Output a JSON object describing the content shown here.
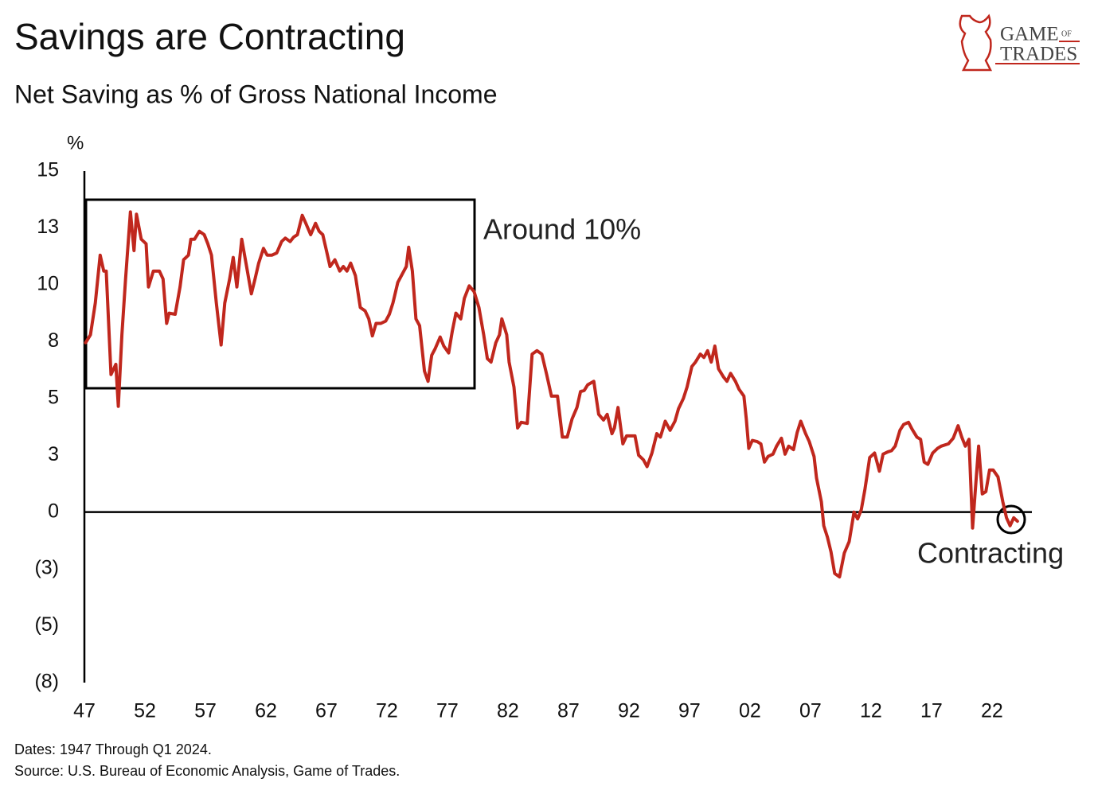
{
  "chart_data": {
    "type": "line",
    "title": "Savings are Contracting",
    "subtitle": "Net Saving as % of Gross National Income",
    "y_label": "%",
    "annotations": [
      "Around 10%",
      "Contracting"
    ],
    "footnotes": [
      "Dates: 1947 Through Q1 2024.",
      "Source: U.S. Bureau of Economic Analysis, Game of Trades."
    ],
    "logo": {
      "game": "GAME",
      "of": "OF",
      "trades": "TRADES"
    },
    "color": "#c0271d",
    "grid": false,
    "xlim": [
      1947,
      2025.3
    ],
    "ylim": [
      -7.5,
      15
    ],
    "yticks": [
      15,
      {
        "value": 12.5,
        "label": "13"
      },
      10,
      {
        "value": 7.5,
        "label": "8"
      },
      5,
      {
        "value": 2.5,
        "label": "3"
      },
      0,
      {
        "value": -2.5,
        "label": "(3)"
      },
      {
        "value": -5,
        "label": "(5)"
      },
      {
        "value": -7.5,
        "label": "(8)"
      }
    ],
    "xticks": [
      {
        "value": 1947,
        "label": "47"
      },
      {
        "value": 1952,
        "label": "52"
      },
      {
        "value": 1957,
        "label": "57"
      },
      {
        "value": 1962,
        "label": "62"
      },
      {
        "value": 1967,
        "label": "67"
      },
      {
        "value": 1972,
        "label": "72"
      },
      {
        "value": 1977,
        "label": "77"
      },
      {
        "value": 1982,
        "label": "82"
      },
      {
        "value": 1987,
        "label": "87"
      },
      {
        "value": 1992,
        "label": "92"
      },
      {
        "value": 1997,
        "label": "97"
      },
      {
        "value": 2002,
        "label": "02"
      },
      {
        "value": 2007,
        "label": "07"
      },
      {
        "value": 2012,
        "label": "12"
      },
      {
        "value": 2017,
        "label": "17"
      },
      {
        "value": 2022,
        "label": "22"
      }
    ],
    "x": [
      1947.1,
      1947.5,
      1947.9,
      1948.3,
      1948.6,
      1948.8,
      1949.2,
      1949.6,
      1949.8,
      1950.1,
      1950.4,
      1950.8,
      1951.1,
      1951.3,
      1951.7,
      1952.1,
      1952.3,
      1952.7,
      1953.2,
      1953.5,
      1953.8,
      1954.0,
      1954.5,
      1954.9,
      1955.2,
      1955.6,
      1955.8,
      1956.1,
      1956.5,
      1956.9,
      1957.2,
      1957.5,
      1957.9,
      1958.3,
      1958.6,
      1959.0,
      1959.3,
      1959.6,
      1960.0,
      1960.4,
      1960.8,
      1961.1,
      1961.4,
      1961.8,
      1962.1,
      1962.5,
      1962.9,
      1963.3,
      1963.6,
      1964.0,
      1964.3,
      1964.6,
      1965.0,
      1965.3,
      1965.7,
      1966.1,
      1966.4,
      1966.7,
      1967.0,
      1967.3,
      1967.7,
      1968.1,
      1968.4,
      1968.7,
      1969.0,
      1969.4,
      1969.8,
      1970.2,
      1970.5,
      1970.8,
      1971.1,
      1971.5,
      1971.9,
      1972.2,
      1972.5,
      1972.9,
      1973.3,
      1973.6,
      1973.8,
      1974.1,
      1974.4,
      1974.7,
      1975.1,
      1975.4,
      1975.7,
      1976.0,
      1976.4,
      1976.7,
      1977.1,
      1977.4,
      1977.7,
      1978.1,
      1978.4,
      1978.8,
      1979.2,
      1979.6,
      1980.0,
      1980.3,
      1980.6,
      1981.0,
      1981.3,
      1981.5,
      1981.9,
      1982.1,
      1982.5,
      1982.8,
      1983.1,
      1983.6,
      1984.0,
      1984.4,
      1984.8,
      1985.2,
      1985.6,
      1986.1,
      1986.5,
      1986.9,
      1987.3,
      1987.7,
      1988.0,
      1988.3,
      1988.6,
      1989.1,
      1989.5,
      1989.9,
      1990.2,
      1990.6,
      1990.8,
      1991.1,
      1991.5,
      1991.8,
      1992.5,
      1992.8,
      1993.2,
      1993.5,
      1993.9,
      1994.3,
      1994.6,
      1995.0,
      1995.4,
      1995.8,
      1996.1,
      1996.5,
      1996.8,
      1997.2,
      1997.5,
      1997.9,
      1998.2,
      1998.5,
      1998.8,
      1999.1,
      1999.4,
      1999.8,
      2000.1,
      2000.4,
      2000.8,
      2001.1,
      2001.5,
      2001.7,
      2001.9,
      2002.2,
      2002.6,
      2002.9,
      2003.2,
      2003.5,
      2003.9,
      2004.2,
      2004.6,
      2004.9,
      2005.2,
      2005.6,
      2005.9,
      2006.2,
      2006.6,
      2006.9,
      2007.3,
      2007.5,
      2007.9,
      2008.1,
      2008.4,
      2008.7,
      2009.0,
      2009.4,
      2009.8,
      2010.2,
      2010.6,
      2010.9,
      2011.2,
      2011.5,
      2011.9,
      2012.3,
      2012.7,
      2013.0,
      2013.4,
      2013.7,
      2014.0,
      2014.4,
      2014.7,
      2015.1,
      2015.4,
      2015.8,
      2016.1,
      2016.4,
      2016.7,
      2017.1,
      2017.5,
      2017.8,
      2018.4,
      2018.8,
      2019.2,
      2019.5,
      2019.8,
      2020.1,
      2020.4,
      2020.6,
      2020.9,
      2021.2,
      2021.5,
      2021.8,
      2022.1,
      2022.5,
      2022.9,
      2023.2,
      2023.5,
      2023.8,
      2024.1
    ],
    "values": [
      7.45,
      7.8,
      9.2,
      11.3,
      10.6,
      10.6,
      6.05,
      6.5,
      4.65,
      7.8,
      10.25,
      13.2,
      11.5,
      13.1,
      12.0,
      11.8,
      9.9,
      10.6,
      10.6,
      10.25,
      8.3,
      8.75,
      8.7,
      9.9,
      11.1,
      11.3,
      12.0,
      12.0,
      12.35,
      12.2,
      11.8,
      11.3,
      9.2,
      7.35,
      9.2,
      10.25,
      11.2,
      9.9,
      12.0,
      10.8,
      9.6,
      10.25,
      10.95,
      11.6,
      11.3,
      11.3,
      11.4,
      11.9,
      12.05,
      11.9,
      12.1,
      12.2,
      13.05,
      12.7,
      12.2,
      12.7,
      12.35,
      12.2,
      11.5,
      10.8,
      11.1,
      10.6,
      10.8,
      10.6,
      10.95,
      10.4,
      9.0,
      8.85,
      8.5,
      7.75,
      8.3,
      8.3,
      8.4,
      8.7,
      9.2,
      10.1,
      10.5,
      10.8,
      11.65,
      10.6,
      8.5,
      8.2,
      6.2,
      5.75,
      6.9,
      7.2,
      7.7,
      7.3,
      7.0,
      7.95,
      8.75,
      8.5,
      9.4,
      9.95,
      9.7,
      9.0,
      7.8,
      6.75,
      6.6,
      7.45,
      7.8,
      8.5,
      7.8,
      6.6,
      5.5,
      3.7,
      3.95,
      3.9,
      6.95,
      7.1,
      6.95,
      6.05,
      5.1,
      5.1,
      3.3,
      3.3,
      4.1,
      4.6,
      5.3,
      5.35,
      5.6,
      5.75,
      4.3,
      4.05,
      4.3,
      3.45,
      3.7,
      4.6,
      3.0,
      3.35,
      3.35,
      2.5,
      2.3,
      2.0,
      2.6,
      3.45,
      3.3,
      4.0,
      3.6,
      4.0,
      4.55,
      5.0,
      5.5,
      6.4,
      6.6,
      6.95,
      6.8,
      7.1,
      6.6,
      7.3,
      6.3,
      5.95,
      5.75,
      6.1,
      5.75,
      5.4,
      5.1,
      4.1,
      2.8,
      3.15,
      3.1,
      3.0,
      2.2,
      2.45,
      2.55,
      2.9,
      3.25,
      2.55,
      2.9,
      2.75,
      3.5,
      4.0,
      3.45,
      3.1,
      2.45,
      1.5,
      0.45,
      -0.6,
      -1.1,
      -1.75,
      -2.7,
      -2.85,
      -1.8,
      -1.3,
      0,
      -0.3,
      0.1,
      1.0,
      2.4,
      2.6,
      1.8,
      2.55,
      2.65,
      2.7,
      2.9,
      3.6,
      3.85,
      3.95,
      3.65,
      3.3,
      3.2,
      2.2,
      2.1,
      2.6,
      2.8,
      2.9,
      3.0,
      3.25,
      3.8,
      3.3,
      2.9,
      3.2,
      -0.7,
      0.8,
      2.9,
      0.8,
      0.9,
      1.85,
      1.85,
      1.55,
      0.45,
      -0.25,
      -0.6,
      -0.25,
      -0.4
    ]
  }
}
